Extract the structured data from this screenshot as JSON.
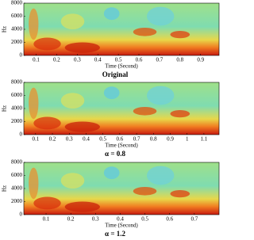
{
  "chart_data": [
    {
      "type": "spectrogram",
      "ylabel": "Hz",
      "xlabel": "Time (Second)",
      "caption": "Original",
      "xlim": [
        0.04,
        0.99
      ],
      "ylim": [
        0,
        8000
      ],
      "xticks": [
        0.1,
        0.2,
        0.3,
        0.4,
        0.5,
        0.6,
        0.7,
        0.8,
        0.9
      ],
      "yticks": [
        0,
        2000,
        4000,
        6000,
        8000
      ]
    },
    {
      "type": "spectrogram",
      "ylabel": "Hz",
      "xlabel": "Time (Second)",
      "caption": "α = 0.8",
      "xlim": [
        0.03,
        1.19
      ],
      "ylim": [
        0,
        8000
      ],
      "xticks": [
        0.1,
        0.2,
        0.3,
        0.4,
        0.5,
        0.6,
        0.7,
        0.8,
        0.9,
        1,
        1.1
      ],
      "yticks": [
        0,
        2000,
        4000,
        6000,
        8000
      ]
    },
    {
      "type": "spectrogram",
      "ylabel": "Hz",
      "xlabel": "Time (Second)",
      "caption": "α = 1.2",
      "xlim": [
        0.01,
        0.8
      ],
      "ylim": [
        0,
        8000
      ],
      "xticks": [
        0.1,
        0.2,
        0.3,
        0.4,
        0.5,
        0.6,
        0.7
      ],
      "yticks": [
        0,
        2000,
        4000,
        6000,
        8000
      ]
    }
  ]
}
